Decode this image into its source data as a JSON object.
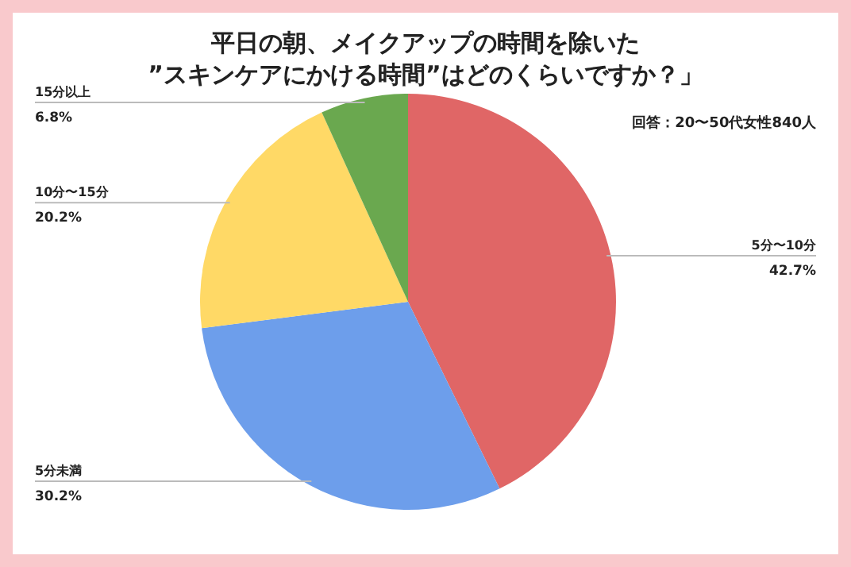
{
  "chart_data": {
    "type": "pie",
    "title": "平日の朝、メイクアップの時間を除いた\n”スキンケアにかける時間”はどのくらいですか？」",
    "subtitle": "回答：20〜50代女性840人",
    "categories": [
      "5分〜10分",
      "5分未満",
      "10分〜15分",
      "15分以上"
    ],
    "values": [
      42.7,
      30.2,
      20.2,
      6.8
    ],
    "colors": [
      "#e06666",
      "#6d9eeb",
      "#ffd966",
      "#6aa84f"
    ],
    "value_labels": [
      "42.7%",
      "30.2%",
      "20.2%",
      "6.8%"
    ]
  }
}
